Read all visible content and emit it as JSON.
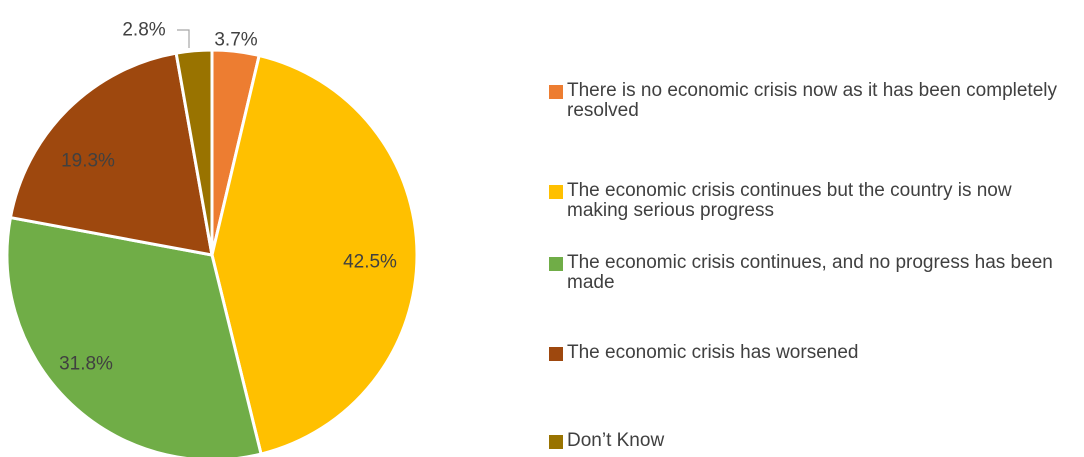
{
  "chart_data": {
    "type": "pie",
    "start_angle_deg": 0,
    "direction": "clockwise",
    "slices": [
      {
        "label": "There is no economic crisis now as it has been completely resolved",
        "value": 3.7,
        "display": "3.7%",
        "color": "#ED7D31"
      },
      {
        "label": "The economic crisis continues but the country is now making serious progress",
        "value": 42.5,
        "display": "42.5%",
        "color": "#FFC000"
      },
      {
        "label": "The economic crisis continues, and no progress has been made",
        "value": 31.8,
        "display": "31.8%",
        "color": "#70AD47"
      },
      {
        "label": "The economic crisis has worsened",
        "value": 19.3,
        "display": "19.3%",
        "color": "#9E480E"
      },
      {
        "label": "Don’t Know",
        "value": 2.8,
        "display": "2.8%",
        "color": "#997300"
      }
    ],
    "legend_position": "right"
  }
}
